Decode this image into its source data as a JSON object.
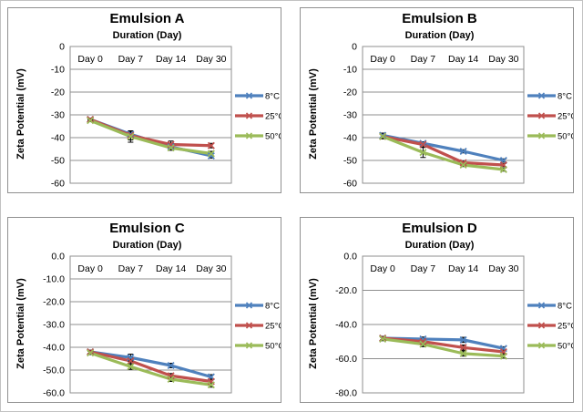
{
  "palette": {
    "series_blue": "#4F81BD",
    "series_red": "#C0504D",
    "series_green": "#9BBB59",
    "gridline": "#8F8F8F",
    "panel_border": "#909090",
    "error_bar": "#000000",
    "text": "#000000",
    "background": "#FFFFFF"
  },
  "chart_data": [
    {
      "type": "line",
      "title": "Emulsion A",
      "xlabel": "Duration (Day)",
      "ylabel": "Zeta Potential (mV)",
      "categories": [
        "Day 0",
        "Day 7",
        "Day 14",
        "Day 30"
      ],
      "ylim": [
        -60,
        0
      ],
      "yticks": [
        "0",
        "-10",
        "-20",
        "-30",
        "-40",
        "-50",
        "-60"
      ],
      "grid": true,
      "legend_position": "right",
      "marker": "x",
      "series": [
        {
          "name": "8°C",
          "color": "#4F81BD",
          "values": [
            -32,
            -38.5,
            -44,
            -48
          ],
          "errors": [
            0.5,
            1,
            1.5,
            1
          ]
        },
        {
          "name": "25°C",
          "color": "#C0504D",
          "values": [
            -32,
            -39,
            -43,
            -43.5
          ],
          "errors": [
            0.5,
            2,
            1.5,
            1
          ]
        },
        {
          "name": "50°C",
          "color": "#9BBB59",
          "values": [
            -32.5,
            -39.5,
            -44.5,
            -47
          ],
          "errors": [
            0.5,
            2.5,
            1,
            1
          ]
        }
      ]
    },
    {
      "type": "line",
      "title": "Emulsion B",
      "xlabel": "Duration (Day)",
      "ylabel": "Zeta Potential (mV)",
      "categories": [
        "Day 0",
        "Day 7",
        "Day 14",
        "Day 30"
      ],
      "ylim": [
        -60,
        0
      ],
      "yticks": [
        "0",
        "-10",
        "-20",
        "-30",
        "-40",
        "-50",
        "-60"
      ],
      "grid": true,
      "legend_position": "right",
      "marker": "x",
      "series": [
        {
          "name": "8°C",
          "color": "#4F81BD",
          "values": [
            -39,
            -42.5,
            -46,
            -50
          ],
          "errors": [
            1,
            0.7,
            0.7,
            0.7
          ]
        },
        {
          "name": "25°C",
          "color": "#C0504D",
          "values": [
            -39.5,
            -43,
            -51,
            -52
          ],
          "errors": [
            1,
            1.2,
            0.7,
            0.7
          ]
        },
        {
          "name": "50°C",
          "color": "#9BBB59",
          "values": [
            -39.5,
            -46.5,
            -52,
            -54
          ],
          "errors": [
            1,
            2.2,
            0.7,
            0.7
          ]
        }
      ]
    },
    {
      "type": "line",
      "title": "Emulsion C",
      "xlabel": "Duration (Day)",
      "ylabel": "Zeta Potential (mV)",
      "categories": [
        "Day 0",
        "Day 7",
        "Day 14",
        "Day 30"
      ],
      "ylim": [
        -60,
        0
      ],
      "yticks": [
        "0.0",
        "-10.0",
        "-20.0",
        "-30.0",
        "-40.0",
        "-50.0",
        "-60.0"
      ],
      "grid": true,
      "legend_position": "right",
      "marker": "x",
      "series": [
        {
          "name": "8°C",
          "color": "#4F81BD",
          "values": [
            -42,
            -44.5,
            -48,
            -53
          ],
          "errors": [
            0.7,
            1.5,
            1,
            1
          ]
        },
        {
          "name": "25°C",
          "color": "#C0504D",
          "values": [
            -42,
            -46,
            -52.5,
            -55
          ],
          "errors": [
            0.7,
            1.2,
            1,
            1
          ]
        },
        {
          "name": "50°C",
          "color": "#9BBB59",
          "values": [
            -42.5,
            -48.5,
            -54,
            -56.5
          ],
          "errors": [
            0.7,
            1.2,
            1,
            1
          ]
        }
      ]
    },
    {
      "type": "line",
      "title": "Emulsion D",
      "xlabel": "Duration (Day)",
      "ylabel": "Zeta Potential (mV)",
      "categories": [
        "Day 0",
        "Day 7",
        "Day 14",
        "Day 30"
      ],
      "ylim": [
        -80,
        0
      ],
      "yticks": [
        "0.0",
        "-20.0",
        "-40.0",
        "-60.0",
        "-80.0"
      ],
      "grid": true,
      "legend_position": "right",
      "marker": "x",
      "series": [
        {
          "name": "8°C",
          "color": "#4F81BD",
          "values": [
            -48,
            -48.5,
            -49,
            -54
          ],
          "errors": [
            1,
            1.2,
            1.5,
            1
          ]
        },
        {
          "name": "25°C",
          "color": "#C0504D",
          "values": [
            -48,
            -50,
            -53.5,
            -56
          ],
          "errors": [
            1,
            1.5,
            1.5,
            1
          ]
        },
        {
          "name": "50°C",
          "color": "#9BBB59",
          "values": [
            -48.5,
            -51.5,
            -57,
            -58.5
          ],
          "errors": [
            1,
            1.5,
            1.5,
            1
          ]
        }
      ]
    }
  ]
}
